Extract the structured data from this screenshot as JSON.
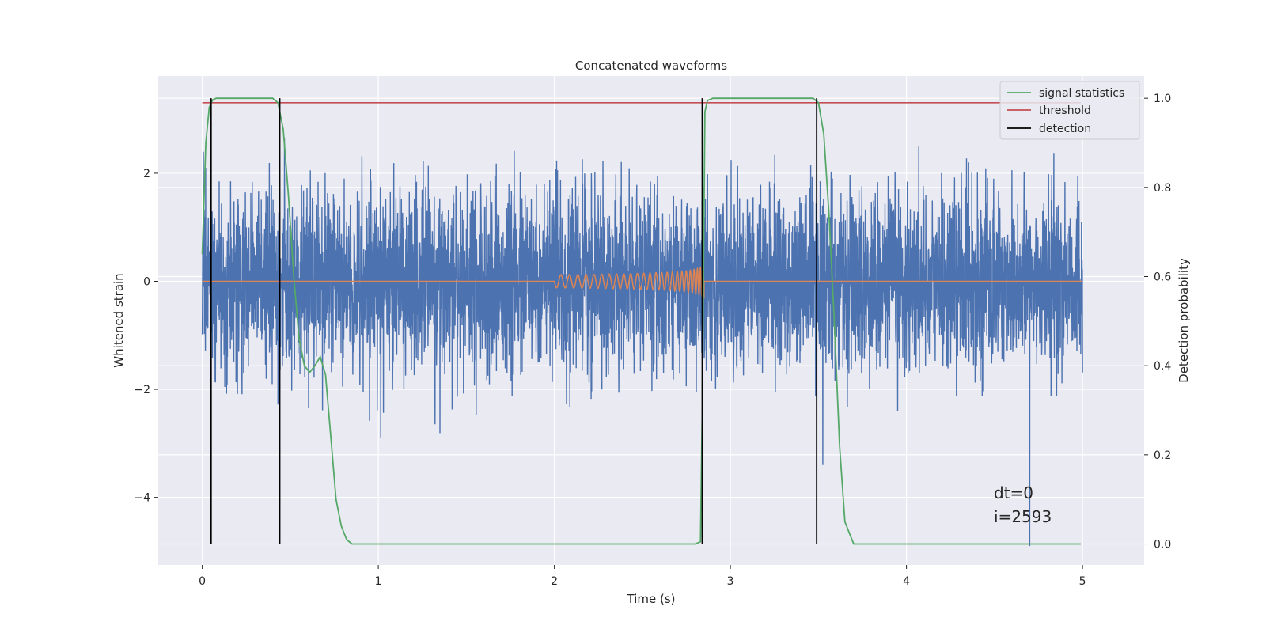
{
  "chart_data": {
    "type": "line",
    "title": "Concatenated waveforms",
    "xlabel": "Time (s)",
    "ylabel": "Whitened strain",
    "ylabel_right": "Detection probability",
    "xlim": [
      -0.25,
      5.35
    ],
    "ylim": [
      -5.25,
      3.8
    ],
    "ylim_right": [
      -0.047,
      1.05
    ],
    "x_ticks": [
      0,
      1,
      2,
      3,
      4,
      5
    ],
    "y_ticks": [
      -4,
      -2,
      0,
      2
    ],
    "y_ticks_right": [
      0.0,
      0.2,
      0.4,
      0.6,
      0.8,
      1.0
    ],
    "y_tick_labels": [
      "−4",
      "−2",
      "0",
      "2"
    ],
    "y_tick_labels_right": [
      "0.0",
      "0.2",
      "0.4",
      "0.6",
      "0.8",
      "1.0"
    ],
    "x_tick_labels": [
      "0",
      "1",
      "2",
      "3",
      "4",
      "5"
    ],
    "grid": true,
    "legend_position": "top-right",
    "series": [
      {
        "name": "signal statistics",
        "axis": "right",
        "color": "#55a868",
        "x": [
          0.0,
          0.02,
          0.04,
          0.06,
          0.08,
          0.1,
          0.2,
          0.3,
          0.4,
          0.43,
          0.46,
          0.49,
          0.52,
          0.55,
          0.58,
          0.61,
          0.64,
          0.67,
          0.7,
          0.73,
          0.76,
          0.79,
          0.82,
          0.85,
          0.9,
          1.5,
          2.0,
          2.5,
          2.8,
          2.83,
          2.84,
          2.855,
          2.87,
          2.9,
          3.0,
          3.2,
          3.4,
          3.47,
          3.5,
          3.53,
          3.56,
          3.59,
          3.62,
          3.65,
          3.7,
          4.0,
          4.5,
          4.99
        ],
        "y": [
          0.65,
          0.9,
          0.98,
          0.997,
          1.0,
          1.0,
          1.0,
          1.0,
          1.0,
          0.99,
          0.93,
          0.78,
          0.6,
          0.46,
          0.4,
          0.385,
          0.4,
          0.42,
          0.38,
          0.24,
          0.1,
          0.04,
          0.01,
          0.0,
          0.0,
          0.0,
          0.0,
          0.0,
          0.0,
          0.005,
          0.3,
          0.97,
          0.995,
          1.0,
          1.0,
          1.0,
          1.0,
          1.0,
          0.99,
          0.92,
          0.74,
          0.5,
          0.22,
          0.05,
          0.0,
          0.0,
          0.0,
          0.0
        ]
      },
      {
        "name": "threshold",
        "axis": "right",
        "color": "#c44e52",
        "x": [
          0.0,
          4.99
        ],
        "y": [
          0.99,
          0.99
        ]
      },
      {
        "name": "detection",
        "axis": "right",
        "color": "#000000",
        "x_values": [
          0.05,
          0.44,
          2.84,
          3.49
        ],
        "y_range": [
          0.0,
          1.0
        ]
      },
      {
        "name": "",
        "axis": "left",
        "color": "#4c72b0",
        "description_values": "whitened strain noise, roughly N(0, 0.8) over 0–5 s, extremes ≈ −4.9 to 3.2",
        "x_range": [
          0,
          5
        ],
        "y_extrema": [
          -4.9,
          3.2
        ]
      },
      {
        "name": "",
        "axis": "left",
        "color": "#dd8452",
        "x_range": [
          2.0,
          2.85
        ],
        "y_extrema": [
          -3.3,
          2.95
        ]
      }
    ],
    "annotations": [
      "dt=0",
      "i=2593"
    ]
  },
  "colors": {
    "axes_bg": "#eaeaf2",
    "grid": "#ffffff",
    "noise": "#4c72b0",
    "chirp": "#dd8452",
    "stat": "#55a868",
    "threshold": "#c44e52",
    "detection": "#000000"
  }
}
